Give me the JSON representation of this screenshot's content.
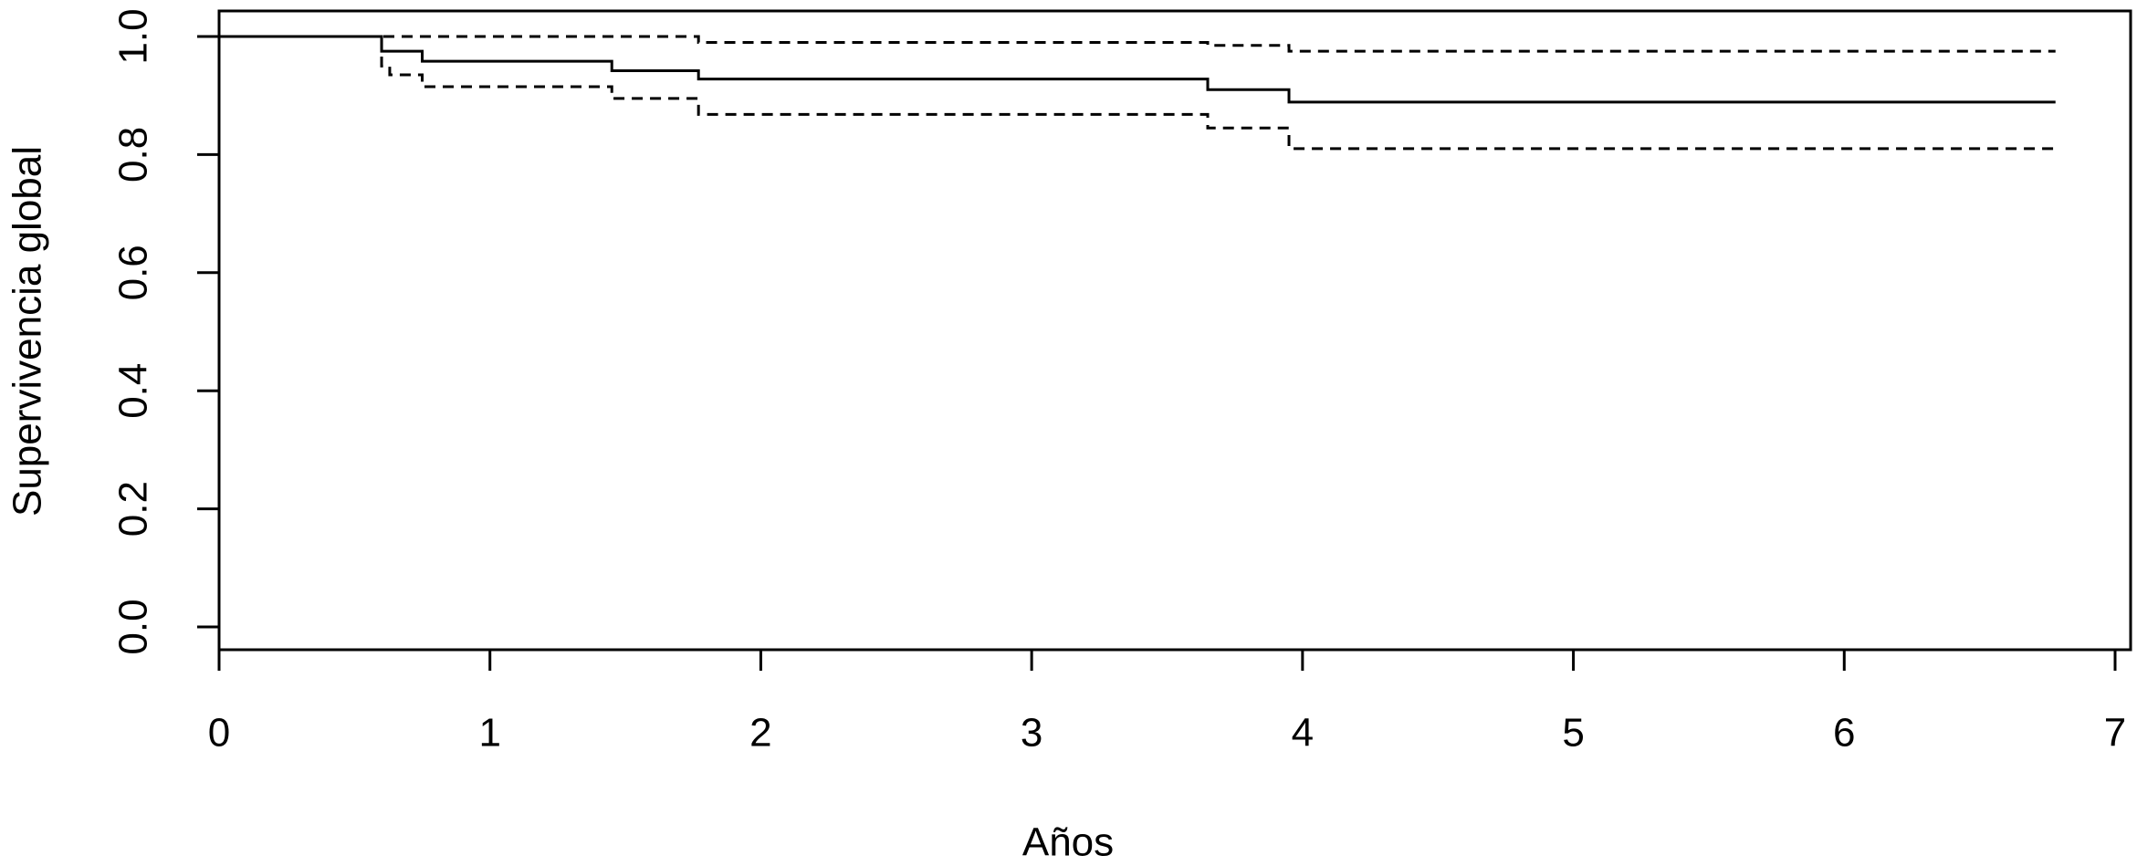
{
  "chart_data": {
    "type": "step",
    "xlabel": "Años",
    "ylabel": "Supervivencia global",
    "x": [
      0,
      0.6,
      0.63,
      0.75,
      1.45,
      1.77,
      3.65,
      3.95,
      6.78
    ],
    "series": [
      {
        "color": "#000000",
        "linestyle": "solid",
        "values": [
          1,
          0.975,
          0.975,
          0.958,
          0.942,
          0.928,
          0.91,
          0.889,
          0.889
        ]
      },
      {
        "color": "#000000",
        "linestyle": "dashed",
        "values": [
          1,
          1,
          1,
          1,
          1,
          0.99,
          0.985,
          0.975,
          0.975
        ]
      },
      {
        "color": "#000000",
        "linestyle": "dashed",
        "values": [
          1,
          0.95,
          0.935,
          0.915,
          0.895,
          0.868,
          0.845,
          0.81,
          0.81
        ]
      }
    ],
    "xlim": [
      0,
      7
    ],
    "xticks": [
      0,
      1,
      2,
      3,
      4,
      5,
      6,
      7
    ],
    "ylim": [
      0,
      1
    ],
    "yticks": [
      {
        "value": 0,
        "label": "0.0"
      },
      0.2,
      0.4,
      0.6,
      0.8,
      {
        "value": 1,
        "label": "1.0"
      }
    ],
    "grid": false
  }
}
